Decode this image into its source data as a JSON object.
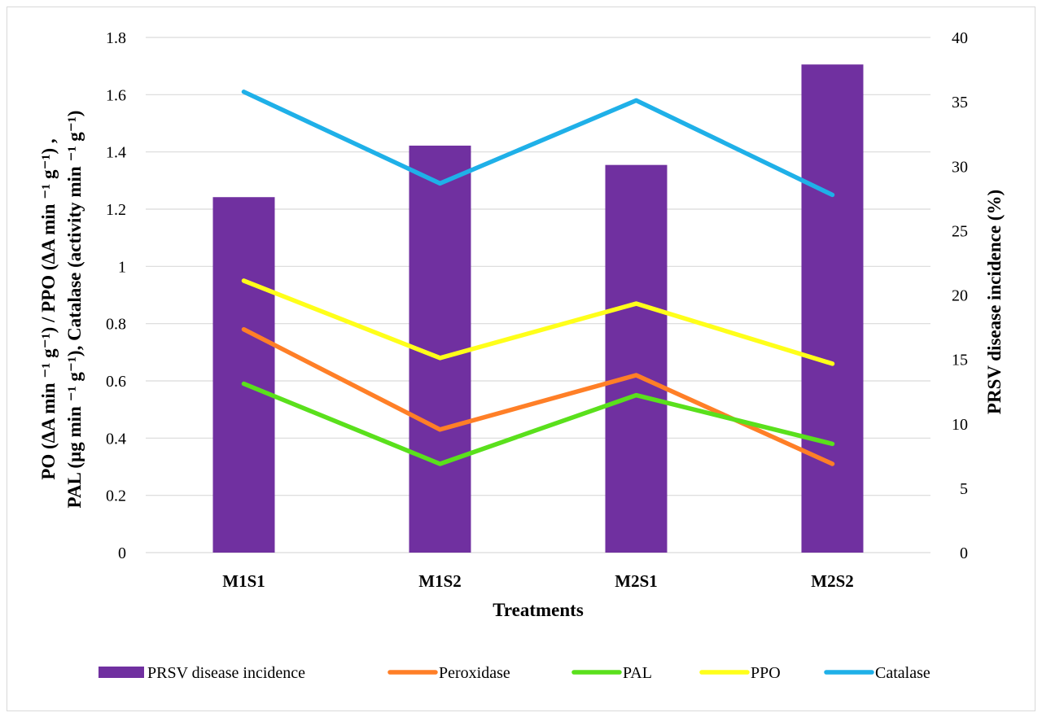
{
  "chart_data": {
    "type": "bar+line",
    "categories": [
      "M1S1",
      "M1S2",
      "M2S1",
      "M2S2"
    ],
    "xlabel": "Treatments",
    "ylabel_left_line1": "PO (ΔA min ⁻¹ g⁻¹) / PPO (ΔA min ⁻¹ g⁻¹) ,",
    "ylabel_left_line2": "PAL (µg min ⁻¹ g⁻¹), Catalase (activity min ⁻¹ g⁻¹)",
    "ylabel_right": "PRSV disease incidence (%)",
    "ylim_left": [
      0,
      1.8
    ],
    "ylim_right": [
      0,
      40
    ],
    "left_ticks": [
      "0",
      "0.2",
      "0.4",
      "0.6",
      "0.8",
      "1",
      "1.2",
      "1.4",
      "1.6",
      "1.8"
    ],
    "right_ticks": [
      "0",
      "5",
      "10",
      "15",
      "20",
      "25",
      "30",
      "35",
      "40"
    ],
    "bars": {
      "name": "PRSV disease incidence",
      "axis": "right",
      "color": "#7030a0",
      "values": [
        27.6,
        31.6,
        30.1,
        37.9
      ]
    },
    "series": [
      {
        "name": "Peroxidase",
        "axis": "left",
        "color": "#ff7f27",
        "values": [
          0.78,
          0.43,
          0.62,
          0.31
        ]
      },
      {
        "name": "PAL",
        "axis": "left",
        "color": "#5ae01c",
        "values": [
          0.59,
          0.31,
          0.55,
          0.38
        ]
      },
      {
        "name": "PPO",
        "axis": "left",
        "color": "#ffff1a",
        "values": [
          0.95,
          0.68,
          0.87,
          0.66
        ]
      },
      {
        "name": "Catalase",
        "axis": "left",
        "color": "#1fb0e8",
        "values": [
          1.61,
          1.29,
          1.58,
          1.25
        ]
      }
    ],
    "legend": {
      "position": "bottom",
      "items": [
        "PRSV disease incidence",
        "Peroxidase",
        "PAL",
        "PPO",
        "Catalase"
      ]
    }
  }
}
